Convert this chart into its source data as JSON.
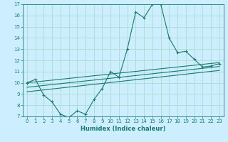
{
  "xlabel": "Humidex (Indice chaleur)",
  "ylabel": "",
  "xlim": [
    -0.5,
    23.5
  ],
  "ylim": [
    7,
    17
  ],
  "xticks": [
    0,
    1,
    2,
    3,
    4,
    5,
    6,
    7,
    8,
    9,
    10,
    11,
    12,
    13,
    14,
    15,
    16,
    17,
    18,
    19,
    20,
    21,
    22,
    23
  ],
  "yticks": [
    7,
    8,
    9,
    10,
    11,
    12,
    13,
    14,
    15,
    16,
    17
  ],
  "bg_color": "#cceeff",
  "grid_color": "#aaddcc",
  "line_color": "#1a7a6e",
  "lines": [
    {
      "x": [
        0,
        1,
        2,
        3,
        4,
        5,
        6,
        7,
        8,
        9,
        10,
        11,
        12,
        13,
        14,
        15,
        16,
        17,
        18,
        19,
        20,
        21,
        22,
        23
      ],
      "y": [
        10.0,
        10.3,
        8.9,
        8.3,
        7.2,
        6.9,
        7.5,
        7.2,
        8.5,
        9.5,
        11.0,
        10.5,
        13.0,
        16.3,
        15.8,
        17.0,
        17.0,
        14.0,
        12.7,
        12.8,
        12.1,
        11.4,
        11.5,
        11.7
      ],
      "marker": true
    },
    {
      "x": [
        0,
        23
      ],
      "y": [
        10.0,
        11.8
      ],
      "marker": false
    },
    {
      "x": [
        0,
        23
      ],
      "y": [
        9.6,
        11.45
      ],
      "marker": false
    },
    {
      "x": [
        0,
        23
      ],
      "y": [
        9.2,
        11.1
      ],
      "marker": false
    }
  ]
}
